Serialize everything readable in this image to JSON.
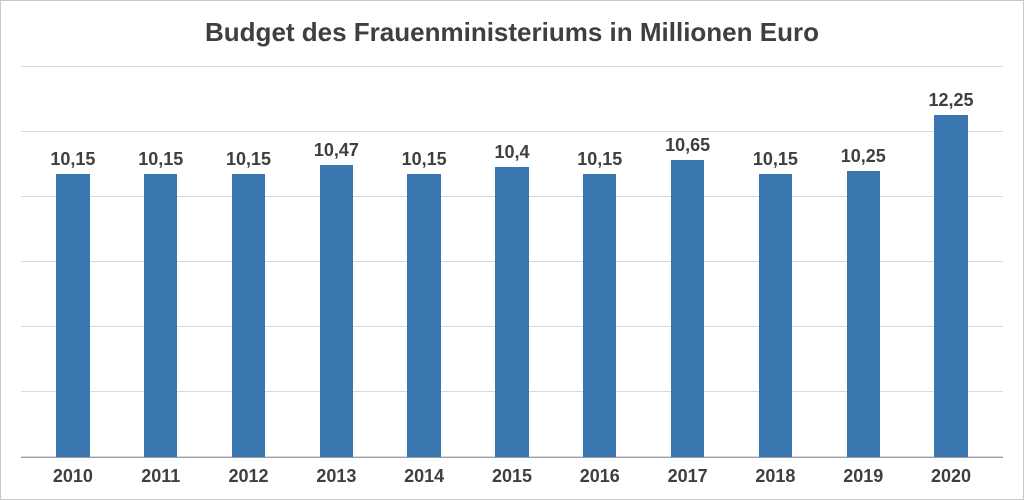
{
  "chart": {
    "type": "bar",
    "title": "Budget des Frauenministeriums in Millionen Euro",
    "title_fontsize": 26,
    "title_color": "#3f3f3f",
    "categories": [
      "2010",
      "2011",
      "2012",
      "2013",
      "2014",
      "2015",
      "2016",
      "2017",
      "2018",
      "2019",
      "2020"
    ],
    "values": [
      10.15,
      10.15,
      10.15,
      10.47,
      10.15,
      10.4,
      10.15,
      10.65,
      10.15,
      10.25,
      12.25
    ],
    "value_labels": [
      "10,15",
      "10,15",
      "10,15",
      "10,47",
      "10,15",
      "10,4",
      "10,15",
      "10,65",
      "10,15",
      "10,25",
      "12,25"
    ],
    "bar_color": "#3a77b0",
    "bar_width_pct": 38,
    "ylim": [
      0,
      14
    ],
    "gridline_count": 7,
    "grid_color": "#d9d9d9",
    "axis_color": "#9e9e9e",
    "background_color": "#ffffff",
    "border_color": "#c8c8c8",
    "value_label_fontsize": 18,
    "value_label_color": "#3f3f3f",
    "x_label_fontsize": 18,
    "x_label_color": "#3f3f3f"
  }
}
